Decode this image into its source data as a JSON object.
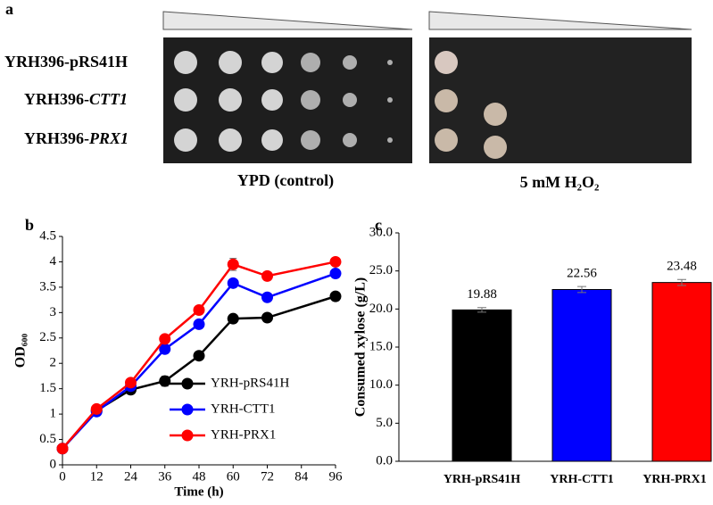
{
  "figure_a": {
    "label": "a",
    "rows": [
      {
        "parts": [
          "YRH396-pRS41H"
        ]
      },
      {
        "parts": [
          "YRH396-",
          "CTT1"
        ]
      },
      {
        "parts": [
          "YRH396-",
          "PRX1"
        ]
      }
    ],
    "plates": [
      "YPD (control)",
      "5 mM H₂O₂"
    ]
  },
  "chart_data": [
    {
      "type": "line",
      "label": "b",
      "x_label": "Time (h)",
      "y_label": "OD₆₀₀",
      "x": [
        0,
        12,
        24,
        36,
        48,
        60,
        72,
        96
      ],
      "xlim": [
        0,
        96
      ],
      "xticks": [
        0,
        12,
        24,
        36,
        48,
        60,
        72,
        84,
        96
      ],
      "ylim": [
        0,
        4.5
      ],
      "yticks": [
        0,
        0.5,
        1,
        1.5,
        2,
        2.5,
        3,
        3.5,
        4,
        4.5
      ],
      "legend": "center right",
      "series": [
        {
          "name": "YRH-pRS41H",
          "color": "#000000",
          "values": [
            0.32,
            1.07,
            1.48,
            1.65,
            2.15,
            2.88,
            2.9,
            3.32
          ],
          "errors": [
            0.03,
            0.03,
            0.03,
            0.1,
            0.03,
            0.03,
            0.03,
            0.03
          ]
        },
        {
          "name": "YRH-CTT1",
          "color": "#0000ff",
          "values": [
            0.32,
            1.05,
            1.55,
            2.28,
            2.77,
            3.58,
            3.3,
            3.77
          ],
          "errors": [
            0.03,
            0.03,
            0.03,
            0.05,
            0.05,
            0.05,
            0.03,
            0.05
          ]
        },
        {
          "name": "YRH-PRX1",
          "color": "#ff0000",
          "values": [
            0.32,
            1.1,
            1.62,
            2.48,
            3.05,
            3.95,
            3.72,
            4.0
          ],
          "errors": [
            0.03,
            0.03,
            0.03,
            0.05,
            0.05,
            0.12,
            0.03,
            0.05
          ]
        }
      ]
    },
    {
      "type": "bar",
      "label": "c",
      "y_label": "Consumed xylose (g/L)",
      "categories": [
        "YRH-pRS41H",
        "YRH-CTT1",
        "YRH-PRX1"
      ],
      "values": [
        19.88,
        22.56,
        23.48
      ],
      "errors": [
        0.3,
        0.4,
        0.4
      ],
      "colors": [
        "#000000",
        "#0000ff",
        "#ff0000"
      ],
      "ylim": [
        0,
        30
      ],
      "yticks": [
        {
          "value": 0,
          "label": "0.0"
        },
        {
          "value": 5,
          "label": "5.0"
        },
        {
          "value": 10,
          "label": "10.0"
        },
        {
          "value": 15,
          "label": "15.0"
        },
        {
          "value": 20,
          "label": "20.0"
        },
        {
          "value": 25,
          "label": "25.0"
        },
        {
          "value": 30,
          "label": "30.0"
        }
      ]
    }
  ]
}
